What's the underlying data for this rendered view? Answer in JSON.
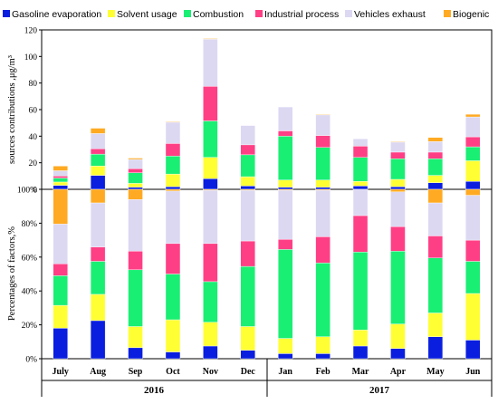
{
  "chart_data": [
    {
      "type": "bar",
      "stacked": true,
      "ylabel": "sources contributions ,μg/m³",
      "ylim": [
        0,
        120
      ],
      "yticks": [
        0,
        20,
        40,
        60,
        80,
        100,
        120
      ],
      "categories": [
        "July",
        "Aug",
        "Sep",
        "Oct",
        "Nov",
        "Dec",
        "Jan",
        "Feb",
        "Mar",
        "Apr",
        "May",
        "Jun"
      ],
      "series": [
        {
          "name": "Gasoline evaporation",
          "values": [
            3,
            10.5,
            1.5,
            2,
            8,
            2.5,
            1.5,
            1.5,
            2.5,
            2,
            5,
            6
          ]
        },
        {
          "name": "Solvent usage",
          "values": [
            2.5,
            7,
            3,
            9.5,
            16,
            7,
            5.5,
            5.5,
            3.5,
            5.5,
            5.5,
            15.5
          ]
        },
        {
          "name": "Combustion",
          "values": [
            3,
            9,
            8,
            13.5,
            27.5,
            16.5,
            33,
            24.5,
            18,
            15.5,
            12.5,
            10.5
          ]
        },
        {
          "name": "Industrial process",
          "values": [
            1.5,
            4,
            3,
            9.5,
            26,
            7.5,
            4,
            9,
            8.5,
            5,
            5,
            7.5
          ]
        },
        {
          "name": "Vehicles exhaust",
          "values": [
            4,
            11.5,
            7,
            16,
            35.5,
            14.5,
            18,
            15.5,
            5.5,
            7.5,
            8,
            15
          ]
        },
        {
          "name": "Biogenic",
          "values": [
            3.5,
            4,
            1,
            0.5,
            0.5,
            0,
            0,
            0.5,
            0,
            0.5,
            3,
            2
          ]
        }
      ]
    },
    {
      "type": "bar",
      "stacked": true,
      "ylabel": "Percentages of factors,%",
      "ylim": [
        0,
        100
      ],
      "yticks": [
        "0%",
        "20%",
        "40%",
        "60%",
        "80%",
        "100%"
      ],
      "categories": [
        "July",
        "Aug",
        "Sep",
        "Oct",
        "Nov",
        "Dec",
        "Jan",
        "Feb",
        "Mar",
        "Apr",
        "May",
        "Jun"
      ],
      "series": [
        {
          "name": "Gasoline evaporation",
          "values": [
            18,
            22.5,
            6.5,
            4,
            7.5,
            5,
            3,
            3,
            7.5,
            6,
            13,
            11
          ]
        },
        {
          "name": "Solvent usage",
          "values": [
            13.5,
            15.5,
            12.5,
            19,
            14,
            14,
            9,
            10,
            9.5,
            14.5,
            14,
            27.5
          ]
        },
        {
          "name": "Combustion",
          "values": [
            17.5,
            19.5,
            33.5,
            27,
            24,
            35.5,
            52.5,
            43.5,
            46,
            43,
            32.5,
            19
          ]
        },
        {
          "name": "Industrial process",
          "values": [
            7,
            8.5,
            11,
            18,
            22.5,
            15,
            6,
            15.5,
            21.5,
            14.5,
            13,
            12.5
          ]
        },
        {
          "name": "Vehicles exhaust",
          "values": [
            23.5,
            26,
            30.5,
            31,
            31.5,
            30,
            29,
            27.5,
            15.5,
            20.5,
            19.5,
            26.5
          ]
        },
        {
          "name": "Biogenic",
          "values": [
            20.5,
            8,
            6,
            1,
            0.5,
            0.5,
            0.5,
            0.5,
            0,
            1.5,
            8,
            3.5
          ]
        }
      ]
    }
  ],
  "legend": [
    {
      "label": "Gasoline evaporation",
      "color": "#0a1ee0"
    },
    {
      "label": "Solvent usage",
      "color": "#ffff33"
    },
    {
      "label": "Combustion",
      "color": "#19ef73"
    },
    {
      "label": "Industrial process",
      "color": "#ff3f85"
    },
    {
      "label": "Vehicles exhaust",
      "color": "#dcd8f2"
    },
    {
      "label": "Biogenic",
      "color": "#ffaa22"
    }
  ],
  "years": [
    "2016",
    "2017"
  ]
}
